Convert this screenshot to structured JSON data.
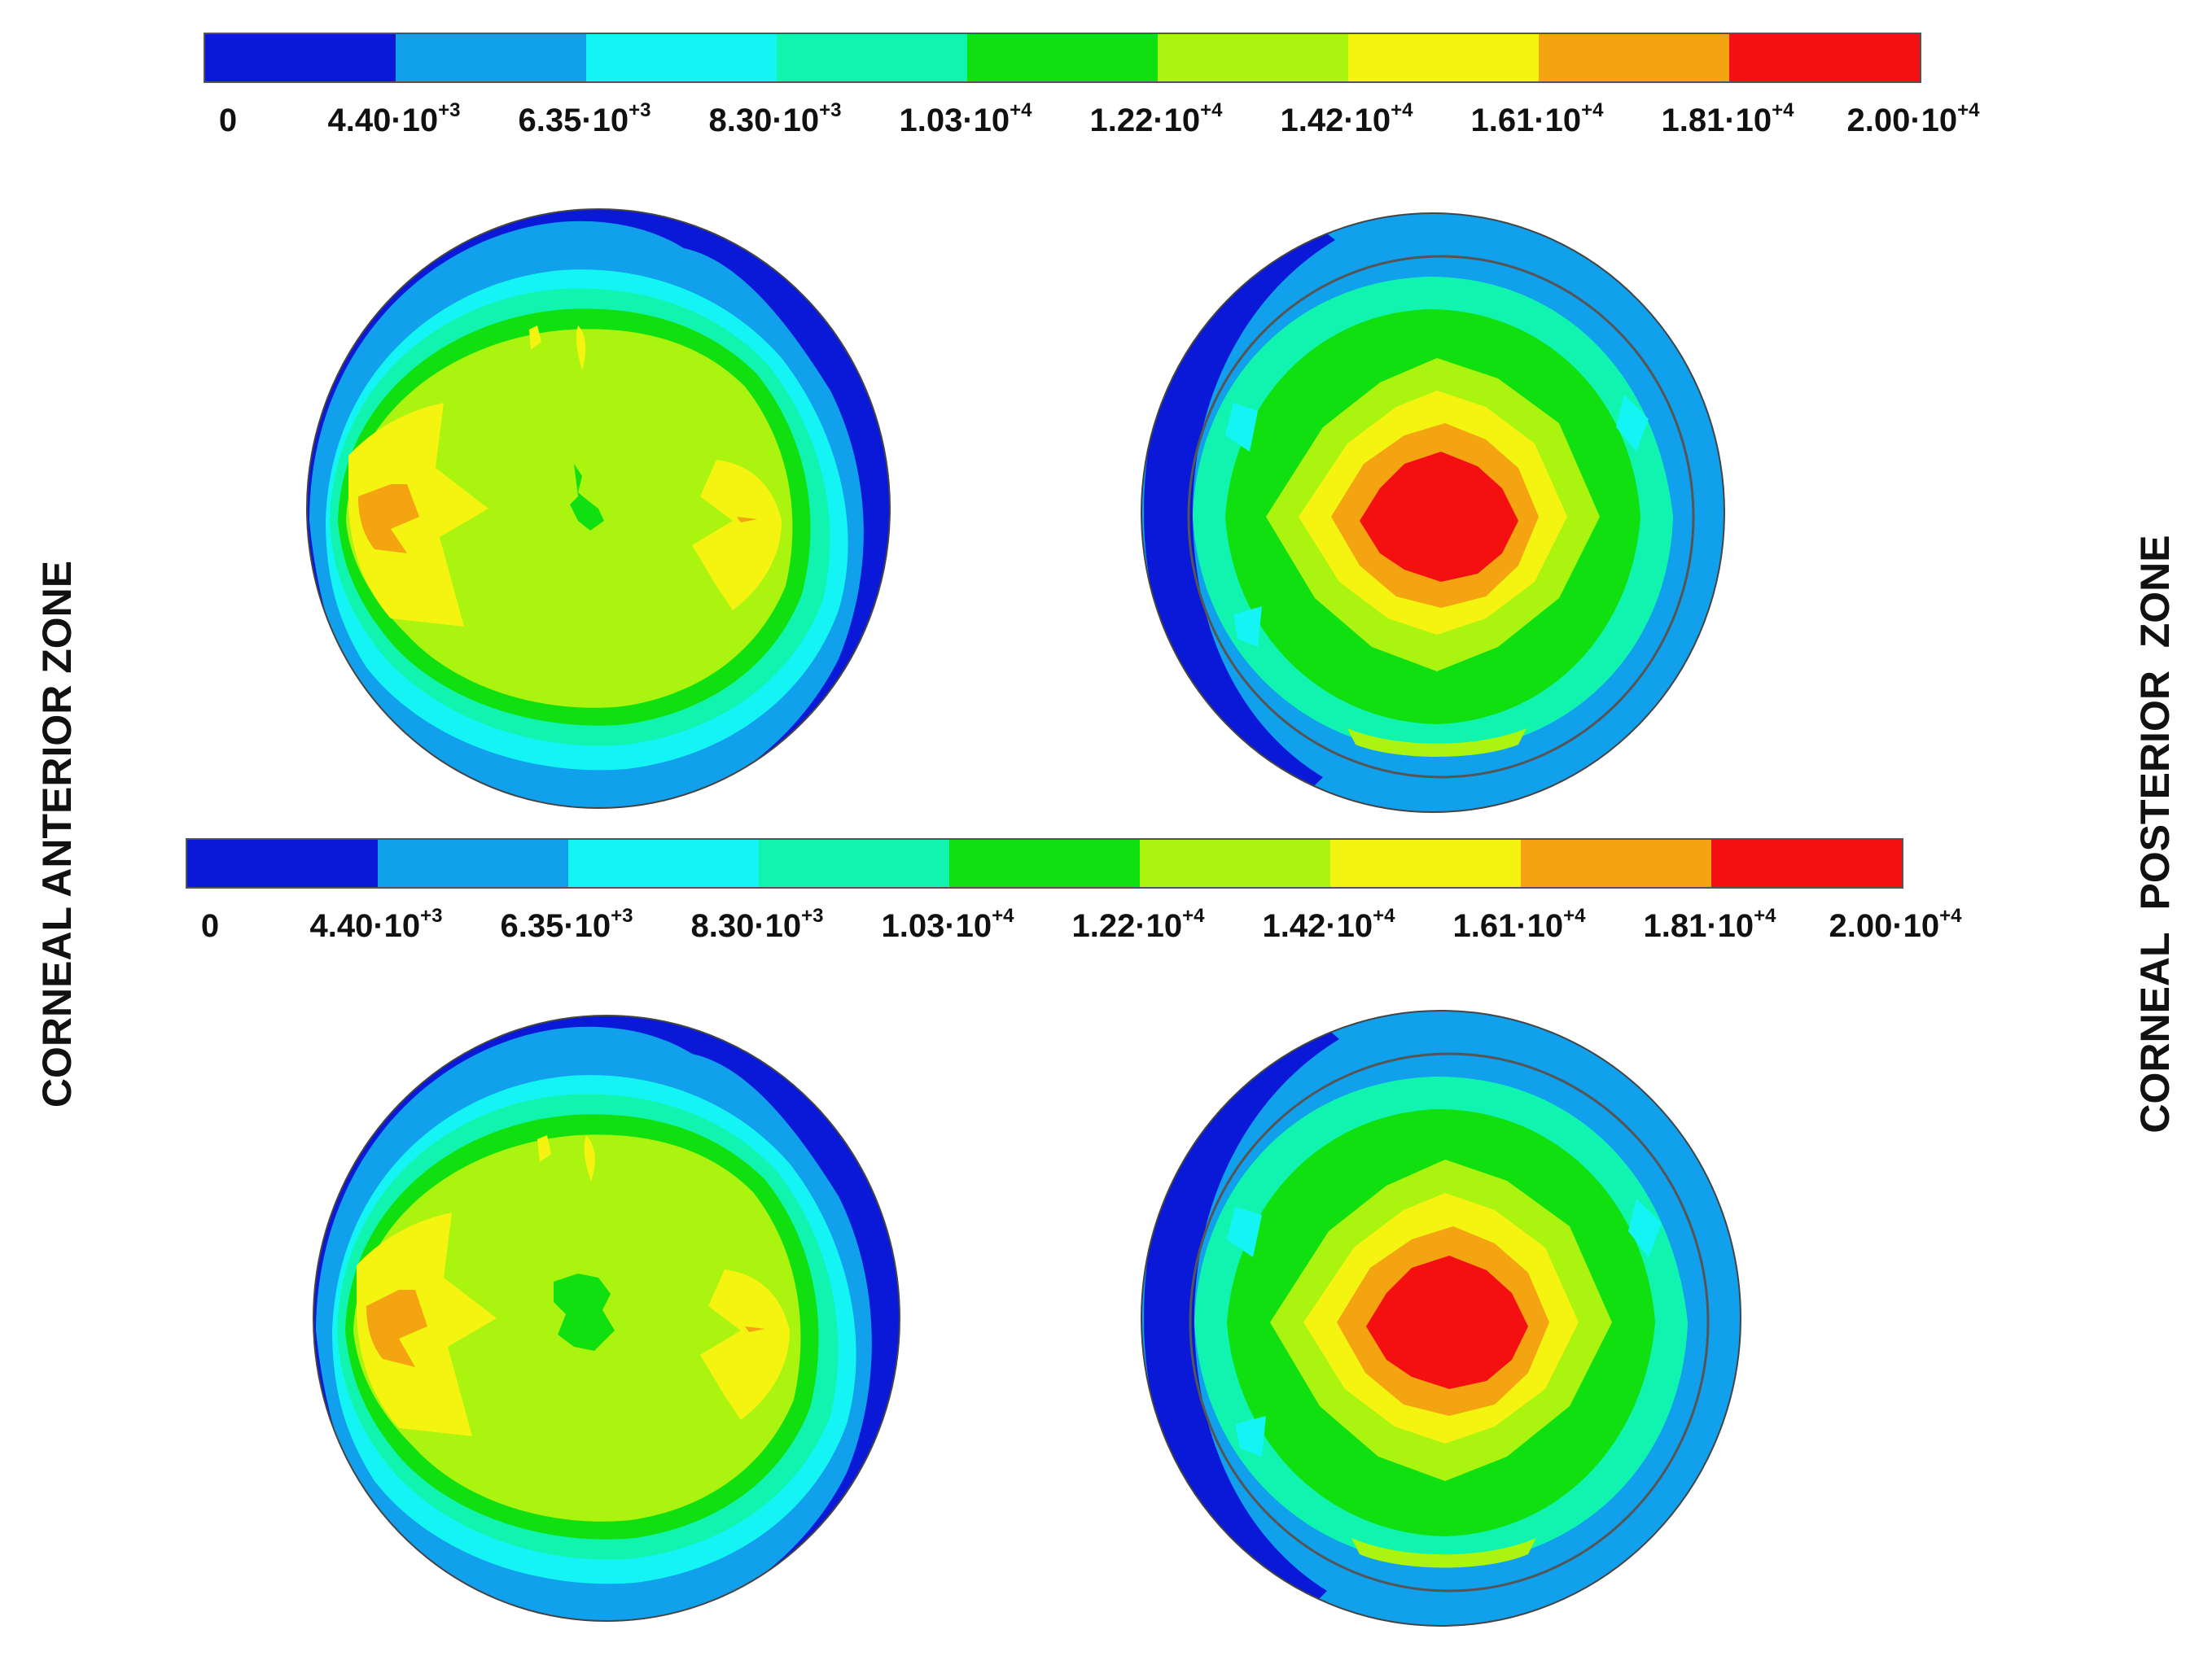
{
  "colors": {
    "scale": [
      "#0a18d8",
      "#10a0ec",
      "#14f4f4",
      "#10f4b0",
      "#10e010",
      "#aaf410",
      "#f4f410",
      "#f4a410",
      "#f41010"
    ],
    "dark_blue": "#0a18d8",
    "blue": "#10a0ec",
    "cyan": "#14f4f4",
    "teal": "#10f4b0",
    "green": "#10e010",
    "yellow_green": "#aaf410",
    "yellow": "#f4f410",
    "orange": "#f4a410",
    "red": "#f41010"
  },
  "legend_top": {
    "ticks": [
      {
        "mantissa": "0",
        "exp": ""
      },
      {
        "mantissa": "4.40·10",
        "exp": "+3"
      },
      {
        "mantissa": "6.35·10",
        "exp": "+3"
      },
      {
        "mantissa": "8.30·10",
        "exp": "+3"
      },
      {
        "mantissa": "1.03·10",
        "exp": "+4"
      },
      {
        "mantissa": "1.22·10",
        "exp": "+4"
      },
      {
        "mantissa": "1.42·10",
        "exp": "+4"
      },
      {
        "mantissa": "1.61·10",
        "exp": "+4"
      },
      {
        "mantissa": "1.81·10",
        "exp": "+4"
      },
      {
        "mantissa": "2.00·10",
        "exp": "+4"
      }
    ]
  },
  "legend_bottom": {
    "ticks": [
      {
        "mantissa": "0",
        "exp": ""
      },
      {
        "mantissa": "4.40·10",
        "exp": "+3"
      },
      {
        "mantissa": "6.35·10",
        "exp": "+3"
      },
      {
        "mantissa": "8.30·10",
        "exp": "+3"
      },
      {
        "mantissa": "1.03·10",
        "exp": "+4"
      },
      {
        "mantissa": "1.22·10",
        "exp": "+4"
      },
      {
        "mantissa": "1.42·10",
        "exp": "+4"
      },
      {
        "mantissa": "1.61·10",
        "exp": "+4"
      },
      {
        "mantissa": "1.81·10",
        "exp": "+4"
      },
      {
        "mantissa": "2.00·10",
        "exp": "+4"
      }
    ]
  },
  "labels": {
    "left": "CORNEAL ANTERIOR ZONE",
    "right": "CORNEAL  POSTERIOR  ZONE"
  }
}
